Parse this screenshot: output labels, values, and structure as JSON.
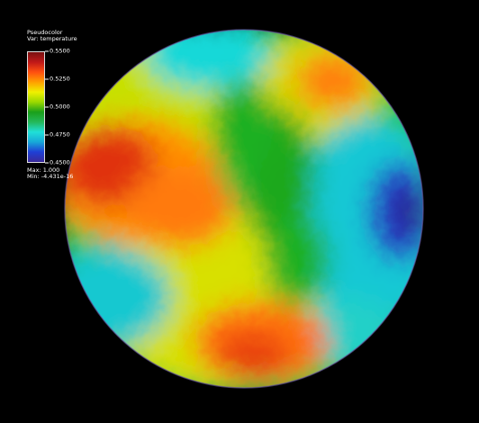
{
  "legend": {
    "plot_type": "Pseudocolor",
    "var_line": "Var: temperature",
    "ticks": [
      "0.5500",
      "0.5250",
      "0.5000",
      "0.4750",
      "0.4500"
    ],
    "max_line": "Max:  1.000",
    "min_line": "Min: -4.431e-16"
  },
  "colormap": [
    "#3a2a9a",
    "#1f3fd6",
    "#17a8d8",
    "#20e0d8",
    "#24b85a",
    "#1aa01a",
    "#9ad800",
    "#f0f000",
    "#ffa000",
    "#ff5010",
    "#c01818",
    "#7a1010"
  ],
  "colors": {
    "background": "#000000",
    "legend_text": "#ffffff"
  }
}
